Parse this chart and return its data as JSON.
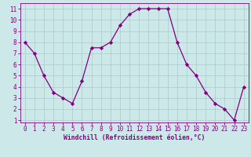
{
  "x": [
    0,
    1,
    2,
    3,
    4,
    5,
    6,
    7,
    8,
    9,
    10,
    11,
    12,
    13,
    14,
    15,
    16,
    17,
    18,
    19,
    20,
    21,
    22,
    23
  ],
  "y": [
    8,
    7,
    5,
    3.5,
    3,
    2.5,
    4.5,
    7.5,
    7.5,
    8,
    9.5,
    10.5,
    11,
    11,
    11,
    11,
    8,
    6,
    5,
    3.5,
    2.5,
    2,
    1,
    4
  ],
  "line_color": "#800080",
  "marker": "D",
  "marker_size": 2.2,
  "bg_color": "#cce8e8",
  "grid_color": "#aacccc",
  "xlabel": "Windchill (Refroidissement éolien,°C)",
  "xlabel_color": "#800080",
  "tick_color": "#800080",
  "xlim": [
    -0.5,
    23.5
  ],
  "ylim": [
    0.8,
    11.5
  ],
  "yticks": [
    1,
    2,
    3,
    4,
    5,
    6,
    7,
    8,
    9,
    10,
    11
  ],
  "xticks": [
    0,
    1,
    2,
    3,
    4,
    5,
    6,
    7,
    8,
    9,
    10,
    11,
    12,
    13,
    14,
    15,
    16,
    17,
    18,
    19,
    20,
    21,
    22,
    23
  ],
  "font_size": 5.5,
  "xlabel_font_size": 5.8,
  "line_width": 0.9
}
